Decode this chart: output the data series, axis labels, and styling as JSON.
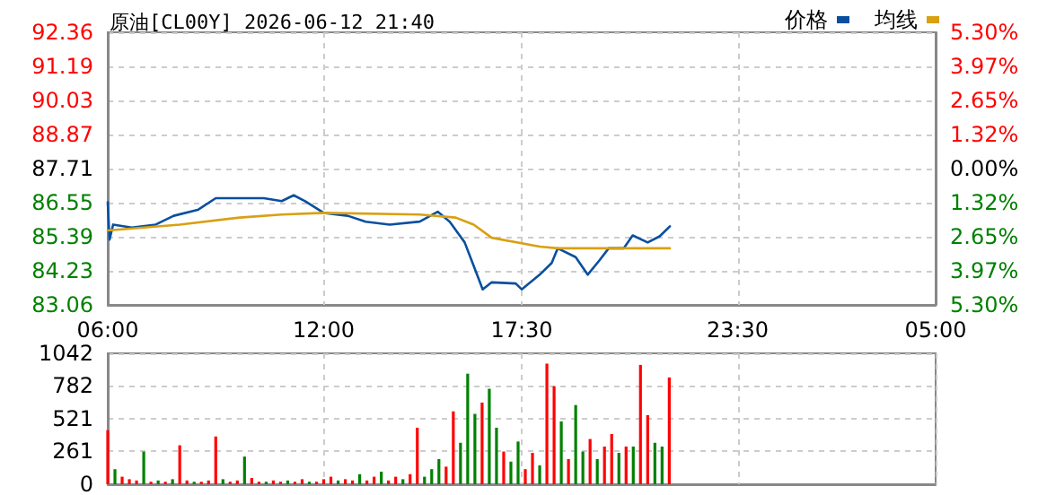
{
  "chart_data": [
    {
      "type": "line",
      "title": "原油[CL00Y] 2026-06-12 21:40",
      "legend": "top right",
      "grid": true,
      "marker": "none",
      "line_style": "solid",
      "xlim": [
        "2026-06-12T06:00",
        "2026-06-13T05:00"
      ],
      "xticks": [
        {
          "value": "2026-06-12T06:00",
          "label": "06:00"
        },
        {
          "value": "2026-06-12T12:00",
          "label": "12:00"
        },
        {
          "value": "2026-06-12T17:30",
          "label": "17:30"
        },
        {
          "value": "2026-06-12T23:30",
          "label": "23:30"
        },
        {
          "value": "2026-06-13T05:00",
          "label": "05:00"
        }
      ],
      "ylim": [
        83.06,
        92.36
      ],
      "yticks": [
        83.06,
        84.23,
        85.39,
        86.55,
        87.71,
        88.87,
        90.03,
        91.19,
        92.36
      ],
      "y2lim": [
        -5.3,
        5.3
      ],
      "y2ticks": [
        {
          "value": -5.3,
          "label": "5.30%"
        },
        {
          "value": -3.97,
          "label": "3.97%"
        },
        {
          "value": -2.65,
          "label": "2.65%"
        },
        {
          "value": -1.32,
          "label": "1.32%"
        },
        {
          "value": 0,
          "label": "0.00%"
        },
        {
          "value": 1.32,
          "label": "1.32%"
        },
        {
          "value": 2.65,
          "label": "2.65%"
        },
        {
          "value": 3.97,
          "label": "3.97%"
        },
        {
          "value": 5.3,
          "label": "5.30%"
        }
      ],
      "series": [
        {
          "name": "价格",
          "color": "#0a4f9e",
          "x": [
            "2026-06-12T06:00",
            "2026-06-12T06:03",
            "2026-06-12T06:09",
            "2026-06-12T06:40",
            "2026-06-12T07:20",
            "2026-06-12T07:50",
            "2026-06-12T08:30",
            "2026-06-12T09:00",
            "2026-06-12T09:40",
            "2026-06-12T10:20",
            "2026-06-12T10:50",
            "2026-06-12T11:10",
            "2026-06-12T11:29",
            "2026-06-12T12:00",
            "2026-06-12T12:40",
            "2026-06-12T13:10",
            "2026-06-12T13:50",
            "2026-06-12T14:40",
            "2026-06-12T15:10",
            "2026-06-12T15:30",
            "2026-06-12T15:55",
            "2026-06-12T16:10",
            "2026-06-12T16:25",
            "2026-06-12T16:40",
            "2026-06-12T17:20",
            "2026-06-12T17:30",
            "2026-06-12T18:00",
            "2026-06-12T18:20",
            "2026-06-12T18:30",
            "2026-06-12T19:00",
            "2026-06-12T19:20",
            "2026-06-12T19:40",
            "2026-06-12T19:55",
            "2026-06-12T20:20",
            "2026-06-12T20:35",
            "2026-06-12T21:00",
            "2026-06-12T21:20",
            "2026-06-12T21:37"
          ],
          "values": [
            86.56,
            85.29,
            85.8,
            85.7,
            85.8,
            86.1,
            86.3,
            86.7,
            86.7,
            86.7,
            86.6,
            86.8,
            86.6,
            86.2,
            86.1,
            85.9,
            85.8,
            85.9,
            86.24,
            85.9,
            85.19,
            84.39,
            83.59,
            83.83,
            83.79,
            83.59,
            84.09,
            84.49,
            84.99,
            84.69,
            84.09,
            84.59,
            84.99,
            84.99,
            85.43,
            85.19,
            85.4,
            85.74
          ]
        },
        {
          "name": "均线",
          "color": "#d9a012",
          "x": [
            "2026-06-12T06:00",
            "2026-06-12T08:00",
            "2026-06-12T09:40",
            "2026-06-12T10:50",
            "2026-06-12T12:00",
            "2026-06-12T14:40",
            "2026-06-12T15:40",
            "2026-06-12T16:10",
            "2026-06-12T16:40",
            "2026-06-12T18:00",
            "2026-06-12T18:30",
            "2026-06-12T21:37"
          ],
          "values": [
            85.6,
            85.8,
            86.04,
            86.14,
            86.2,
            86.14,
            86.04,
            85.8,
            85.35,
            85.05,
            84.99,
            84.99
          ]
        }
      ]
    },
    {
      "type": "bar",
      "grid": true,
      "tick_labels": "y",
      "xlim": [
        "2026-06-12T06:00",
        "2026-06-13T05:00"
      ],
      "xticks": [
        "2026-06-12T06:00",
        "2026-06-12T12:00",
        "2026-06-12T17:30",
        "2026-06-12T23:30",
        "2026-06-13T05:00"
      ],
      "ylim": [
        0,
        1042
      ],
      "yticks": [
        0,
        261,
        521,
        782,
        1042
      ],
      "x": [
        "2026-06-12T06:00",
        "2026-06-12T06:12",
        "2026-06-12T06:24",
        "2026-06-12T06:36",
        "2026-06-12T06:48",
        "2026-06-12T07:00",
        "2026-06-12T07:12",
        "2026-06-12T07:24",
        "2026-06-12T07:36",
        "2026-06-12T07:48",
        "2026-06-12T08:00",
        "2026-06-12T08:12",
        "2026-06-12T08:24",
        "2026-06-12T08:36",
        "2026-06-12T08:48",
        "2026-06-12T09:00",
        "2026-06-12T09:12",
        "2026-06-12T09:24",
        "2026-06-12T09:36",
        "2026-06-12T09:48",
        "2026-06-12T10:00",
        "2026-06-12T10:12",
        "2026-06-12T10:24",
        "2026-06-12T10:36",
        "2026-06-12T10:48",
        "2026-06-12T11:00",
        "2026-06-12T11:12",
        "2026-06-12T11:24",
        "2026-06-12T11:36",
        "2026-06-12T11:48",
        "2026-06-12T12:00",
        "2026-06-12T12:12",
        "2026-06-12T12:24",
        "2026-06-12T12:36",
        "2026-06-12T12:48",
        "2026-06-12T13:00",
        "2026-06-12T13:12",
        "2026-06-12T13:24",
        "2026-06-12T13:36",
        "2026-06-12T13:48",
        "2026-06-12T14:00",
        "2026-06-12T14:12",
        "2026-06-12T14:24",
        "2026-06-12T14:36",
        "2026-06-12T14:48",
        "2026-06-12T15:00",
        "2026-06-12T15:12",
        "2026-06-12T15:24",
        "2026-06-12T15:36",
        "2026-06-12T15:48",
        "2026-06-12T16:00",
        "2026-06-12T16:12",
        "2026-06-12T16:24",
        "2026-06-12T16:36",
        "2026-06-12T16:48",
        "2026-06-12T17:00",
        "2026-06-12T17:12",
        "2026-06-12T17:24",
        "2026-06-12T17:36",
        "2026-06-12T17:48",
        "2026-06-12T18:00",
        "2026-06-12T18:12",
        "2026-06-12T18:24",
        "2026-06-12T18:36",
        "2026-06-12T18:48",
        "2026-06-12T19:00",
        "2026-06-12T19:12",
        "2026-06-12T19:24",
        "2026-06-12T19:36",
        "2026-06-12T19:48",
        "2026-06-12T20:00",
        "2026-06-12T20:12",
        "2026-06-12T20:24",
        "2026-06-12T20:36",
        "2026-06-12T20:48",
        "2026-06-12T21:00",
        "2026-06-12T21:12",
        "2026-06-12T21:24",
        "2026-06-12T21:36"
      ],
      "values": [
        430,
        120,
        60,
        40,
        30,
        260,
        20,
        30,
        20,
        40,
        310,
        30,
        20,
        20,
        30,
        380,
        40,
        20,
        30,
        220,
        50,
        20,
        20,
        30,
        20,
        30,
        20,
        40,
        20,
        20,
        40,
        60,
        30,
        40,
        30,
        80,
        30,
        60,
        100,
        30,
        60,
        40,
        80,
        450,
        60,
        120,
        200,
        140,
        580,
        330,
        880,
        560,
        650,
        760,
        450,
        260,
        180,
        340,
        120,
        250,
        150,
        960,
        780,
        500,
        200,
        630,
        260,
        360,
        200,
        300,
        400,
        250,
        300,
        300,
        950,
        550,
        330,
        300,
        850
      ],
      "colors": [
        "#ff0000",
        "#008000",
        "#ff0000",
        "#ff0000",
        "#ff0000",
        "#008000",
        "#ff0000",
        "#008000",
        "#ff0000",
        "#008000",
        "#ff0000",
        "#ff0000",
        "#008000",
        "#ff0000",
        "#ff0000",
        "#ff0000",
        "#008000",
        "#ff0000",
        "#ff0000",
        "#008000",
        "#ff0000",
        "#ff0000",
        "#008000",
        "#ff0000",
        "#ff0000",
        "#008000",
        "#ff0000",
        "#ff0000",
        "#008000",
        "#ff0000",
        "#ff0000",
        "#ff0000",
        "#008000",
        "#ff0000",
        "#ff0000",
        "#008000",
        "#ff0000",
        "#ff0000",
        "#008000",
        "#ff0000",
        "#ff0000",
        "#008000",
        "#ff0000",
        "#ff0000",
        "#008000",
        "#008000",
        "#008000",
        "#ff0000",
        "#ff0000",
        "#008000",
        "#008000",
        "#008000",
        "#ff0000",
        "#008000",
        "#008000",
        "#ff0000",
        "#008000",
        "#008000",
        "#ff0000",
        "#ff0000",
        "#008000",
        "#ff0000",
        "#ff0000",
        "#008000",
        "#ff0000",
        "#008000",
        "#008000",
        "#ff0000",
        "#008000",
        "#ff0000",
        "#ff0000",
        "#008000",
        "#ff0000",
        "#008000",
        "#ff0000",
        "#ff0000",
        "#008000",
        "#008000",
        "#ff0000"
      ]
    }
  ]
}
